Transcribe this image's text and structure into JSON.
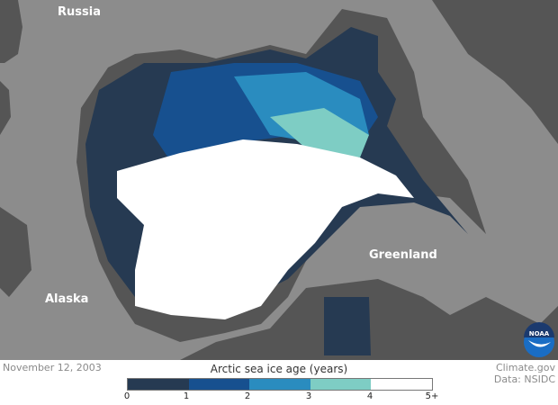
{
  "map": {
    "title": "Arctic sea ice age (years)",
    "date": "November 12, 2003",
    "credit": "Climate.gov",
    "data_source": "Data: NSIDC",
    "place_labels": [
      "Russia",
      "Greenland",
      "Alaska"
    ],
    "logo": "NOAA",
    "colors": {
      "land": "#8c8c8c",
      "ocean": "#555555",
      "ocean_border": "#666666"
    }
  },
  "legend": {
    "ticks": [
      "0",
      "1",
      "2",
      "3",
      "4",
      "5+"
    ],
    "colors": [
      "#263a52",
      "#17508f",
      "#2a8cbf",
      "#7ecdc4",
      "#ffffff"
    ]
  }
}
